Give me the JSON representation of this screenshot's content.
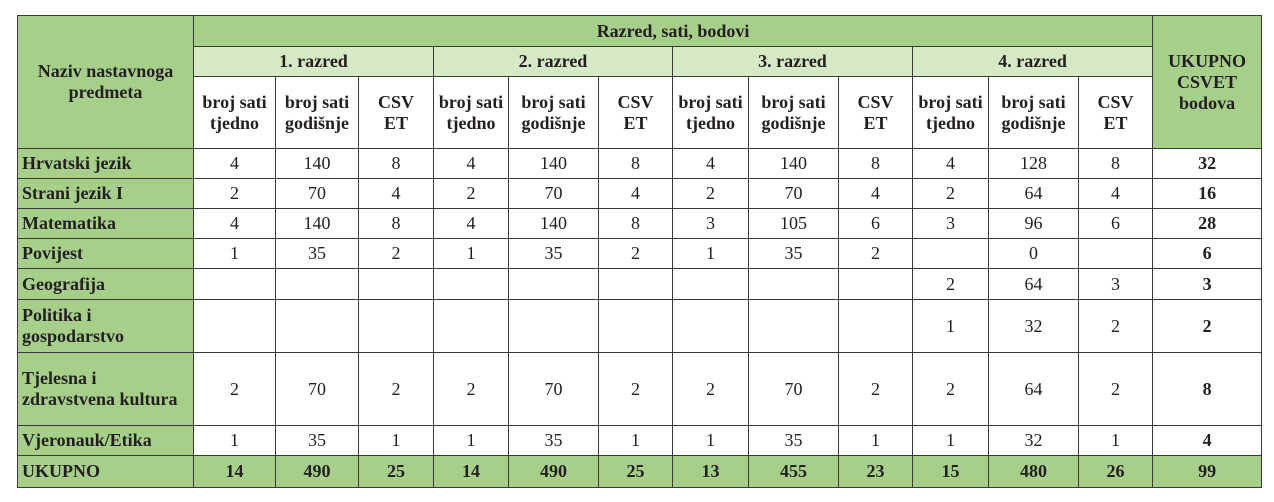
{
  "table": {
    "subject_header": "Naziv nastavnoga predmeta",
    "group_header": "Razred, sati, bodovi",
    "grades": [
      {
        "name": "1. razred",
        "columns": [
          "broj sati tjedno",
          "broj sati godišnje",
          "CSVET"
        ]
      },
      {
        "name": "2. razred",
        "columns": [
          "broj sati tjedno",
          "broj sati godišnje",
          "CSVET"
        ]
      },
      {
        "name": "3. razred",
        "columns": [
          "broj sati tjedno",
          "broj sati godišnje",
          "CSVET"
        ]
      },
      {
        "name": "4. razred",
        "columns": [
          "broj sati tjedno",
          "broj sati godišnje",
          "CSVET"
        ]
      }
    ],
    "total_header": "UKUPNO CSVET bodova",
    "rows": [
      [
        "Hrvatski jezik",
        4,
        140,
        8,
        4,
        140,
        8,
        4,
        140,
        8,
        4,
        128,
        8,
        32
      ],
      [
        "Strani jezik I",
        2,
        70,
        4,
        2,
        70,
        4,
        2,
        70,
        4,
        2,
        64,
        4,
        16
      ],
      [
        "Matematika",
        4,
        140,
        8,
        4,
        140,
        8,
        3,
        105,
        6,
        3,
        96,
        6,
        28
      ],
      [
        "Povijest",
        1,
        35,
        2,
        1,
        35,
        2,
        1,
        35,
        2,
        null,
        0,
        null,
        6
      ],
      [
        "Geografija",
        null,
        null,
        null,
        null,
        null,
        null,
        null,
        null,
        null,
        2,
        64,
        3,
        3
      ],
      [
        "Politika i gospodarstvo",
        null,
        null,
        null,
        null,
        null,
        null,
        null,
        null,
        null,
        1,
        32,
        2,
        2
      ],
      [
        "Tjelesna i zdravstvena kultura",
        2,
        70,
        2,
        2,
        70,
        2,
        2,
        70,
        2,
        2,
        64,
        2,
        8
      ],
      [
        "Vjeronauk/Etika",
        1,
        35,
        1,
        1,
        35,
        1,
        1,
        35,
        1,
        1,
        32,
        1,
        4
      ]
    ],
    "total_row": [
      "UKUPNO",
      14,
      490,
      25,
      14,
      490,
      25,
      13,
      455,
      23,
      15,
      480,
      26,
      99
    ]
  }
}
